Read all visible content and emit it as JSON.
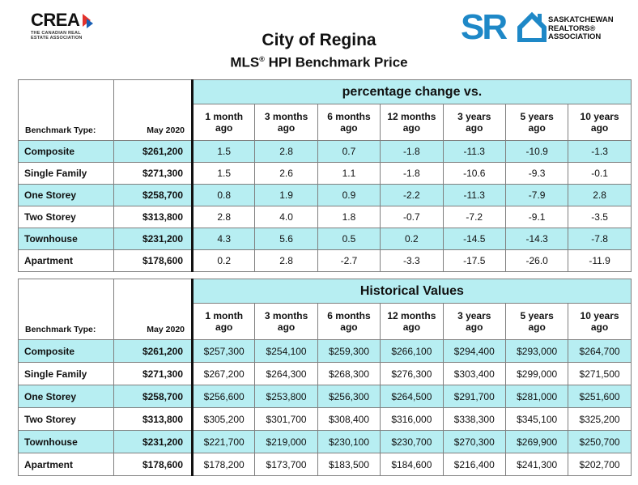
{
  "header": {
    "title": "City of Regina",
    "subtitle_pre": "MLS",
    "subtitle_reg": "®",
    "subtitle_post": " HPI Benchmark Price",
    "crea_logo_text": "CREA",
    "crea_logo_subtext": "The Canadian Real Estate Association",
    "sr_logo_text": "SR",
    "sr_assoc_line1": "SASKATCHEWAN",
    "sr_assoc_line2": "REALTORS®",
    "sr_assoc_line3": "ASSOCIATION"
  },
  "colors": {
    "highlight": "#b7eef2",
    "brand_blue": "#1e88c7",
    "crea_red": "#e4312b"
  },
  "columns": [
    "1 month ago",
    "3 months ago",
    "6 months ago",
    "12 months ago",
    "3 years ago",
    "5 years ago",
    "10 years ago"
  ],
  "column_lines": [
    [
      "1 month",
      "ago"
    ],
    [
      "3 months",
      "ago"
    ],
    [
      "6 months",
      "ago"
    ],
    [
      "12 months",
      "ago"
    ],
    [
      "3 years",
      "ago"
    ],
    [
      "5 years",
      "ago"
    ],
    [
      "10 years",
      "ago"
    ]
  ],
  "label_benchmark_type": "Benchmark Type:",
  "label_date": "May 2020",
  "pct_table": {
    "heading": "percentage change vs.",
    "rows": [
      {
        "type": "Composite",
        "price": "$261,200",
        "values": [
          "1.5",
          "2.8",
          "0.7",
          "-1.8",
          "-11.3",
          "-10.9",
          "-1.3"
        ]
      },
      {
        "type": "Single Family",
        "price": "$271,300",
        "values": [
          "1.5",
          "2.6",
          "1.1",
          "-1.8",
          "-10.6",
          "-9.3",
          "-0.1"
        ]
      },
      {
        "type": "One Storey",
        "price": "$258,700",
        "values": [
          "0.8",
          "1.9",
          "0.9",
          "-2.2",
          "-11.3",
          "-7.9",
          "2.8"
        ]
      },
      {
        "type": "Two Storey",
        "price": "$313,800",
        "values": [
          "2.8",
          "4.0",
          "1.8",
          "-0.7",
          "-7.2",
          "-9.1",
          "-3.5"
        ]
      },
      {
        "type": "Townhouse",
        "price": "$231,200",
        "values": [
          "4.3",
          "5.6",
          "0.5",
          "0.2",
          "-14.5",
          "-14.3",
          "-7.8"
        ]
      },
      {
        "type": "Apartment",
        "price": "$178,600",
        "values": [
          "0.2",
          "2.8",
          "-2.7",
          "-3.3",
          "-17.5",
          "-26.0",
          "-11.9"
        ]
      }
    ]
  },
  "hist_table": {
    "heading": "Historical Values",
    "rows": [
      {
        "type": "Composite",
        "price": "$261,200",
        "values": [
          "$257,300",
          "$254,100",
          "$259,300",
          "$266,100",
          "$294,400",
          "$293,000",
          "$264,700"
        ]
      },
      {
        "type": "Single Family",
        "price": "$271,300",
        "values": [
          "$267,200",
          "$264,300",
          "$268,300",
          "$276,300",
          "$303,400",
          "$299,000",
          "$271,500"
        ]
      },
      {
        "type": "One Storey",
        "price": "$258,700",
        "values": [
          "$256,600",
          "$253,800",
          "$256,300",
          "$264,500",
          "$291,700",
          "$281,000",
          "$251,600"
        ]
      },
      {
        "type": "Two Storey",
        "price": "$313,800",
        "values": [
          "$305,200",
          "$301,700",
          "$308,400",
          "$316,000",
          "$338,300",
          "$345,100",
          "$325,200"
        ]
      },
      {
        "type": "Townhouse",
        "price": "$231,200",
        "values": [
          "$221,700",
          "$219,000",
          "$230,100",
          "$230,700",
          "$270,300",
          "$269,900",
          "$250,700"
        ]
      },
      {
        "type": "Apartment",
        "price": "$178,600",
        "values": [
          "$178,200",
          "$173,700",
          "$183,500",
          "$184,600",
          "$216,400",
          "$241,300",
          "$202,700"
        ]
      }
    ]
  }
}
